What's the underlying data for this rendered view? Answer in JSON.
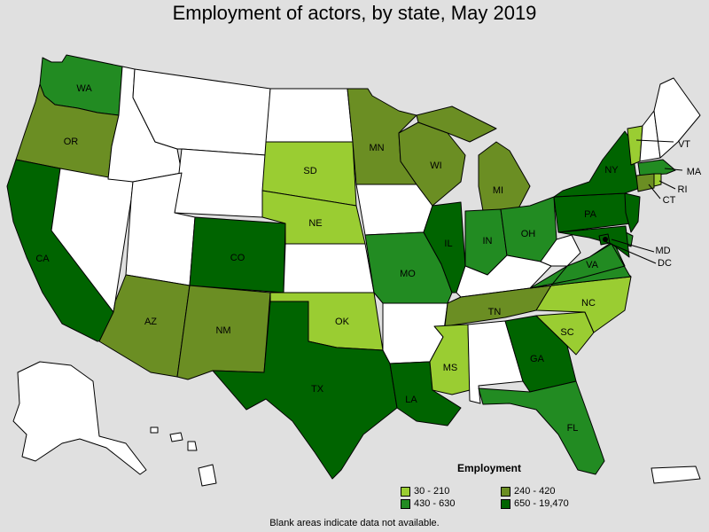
{
  "title": "Employment of actors, by state, May 2019",
  "footnote": "Blank areas indicate data not available.",
  "legend": {
    "title": "Employment",
    "items": [
      {
        "label": "30 - 210",
        "color": "#9acd32"
      },
      {
        "label": "240 - 420",
        "color": "#6b8e23"
      },
      {
        "label": "430 - 630",
        "color": "#228b22"
      },
      {
        "label": "650 - 19,470",
        "color": "#006400"
      }
    ]
  },
  "colors": {
    "background": "#e0e0e0",
    "no_data": "#ffffff",
    "border": "#000000"
  },
  "states": [
    {
      "abbr": "WA",
      "category": 2
    },
    {
      "abbr": "OR",
      "category": 1
    },
    {
      "abbr": "CA",
      "category": 3
    },
    {
      "abbr": "AZ",
      "category": 1
    },
    {
      "abbr": "NM",
      "category": 1
    },
    {
      "abbr": "CO",
      "category": 3
    },
    {
      "abbr": "TX",
      "category": 3
    },
    {
      "abbr": "OK",
      "category": 0
    },
    {
      "abbr": "SD",
      "category": 0
    },
    {
      "abbr": "NE",
      "category": 0
    },
    {
      "abbr": "MN",
      "category": 1
    },
    {
      "abbr": "WI",
      "category": 1
    },
    {
      "abbr": "MI",
      "category": 1
    },
    {
      "abbr": "IL",
      "category": 3
    },
    {
      "abbr": "IN",
      "category": 2
    },
    {
      "abbr": "OH",
      "category": 2
    },
    {
      "abbr": "MO",
      "category": 2
    },
    {
      "abbr": "TN",
      "category": 1
    },
    {
      "abbr": "MS",
      "category": 0
    },
    {
      "abbr": "LA",
      "category": 3
    },
    {
      "abbr": "GA",
      "category": 3
    },
    {
      "abbr": "FL",
      "category": 2
    },
    {
      "abbr": "SC",
      "category": 0
    },
    {
      "abbr": "NC",
      "category": 0
    },
    {
      "abbr": "VA",
      "category": 2
    },
    {
      "abbr": "PA",
      "category": 3
    },
    {
      "abbr": "NY",
      "category": 3
    },
    {
      "abbr": "VT",
      "category": 0
    },
    {
      "abbr": "MA",
      "category": 2
    },
    {
      "abbr": "RI",
      "category": 0
    },
    {
      "abbr": "CT",
      "category": 1
    },
    {
      "abbr": "MD",
      "category": 3
    },
    {
      "abbr": "DC",
      "category": 3
    },
    {
      "abbr": "NJ",
      "category": 3
    },
    {
      "abbr": "DE",
      "category": 2
    },
    {
      "abbr": "MT",
      "category": null
    },
    {
      "abbr": "ID",
      "category": null
    },
    {
      "abbr": "WY",
      "category": null
    },
    {
      "abbr": "NV",
      "category": null
    },
    {
      "abbr": "UT",
      "category": null
    },
    {
      "abbr": "ND",
      "category": null
    },
    {
      "abbr": "KS",
      "category": null
    },
    {
      "abbr": "IA",
      "category": null
    },
    {
      "abbr": "AR",
      "category": null
    },
    {
      "abbr": "AL",
      "category": null
    },
    {
      "abbr": "KY",
      "category": null
    },
    {
      "abbr": "WV",
      "category": null
    },
    {
      "abbr": "ME",
      "category": null
    },
    {
      "abbr": "NH",
      "category": null
    },
    {
      "abbr": "AK",
      "category": null
    },
    {
      "abbr": "HI",
      "category": null
    },
    {
      "abbr": "PR",
      "category": null
    }
  ]
}
